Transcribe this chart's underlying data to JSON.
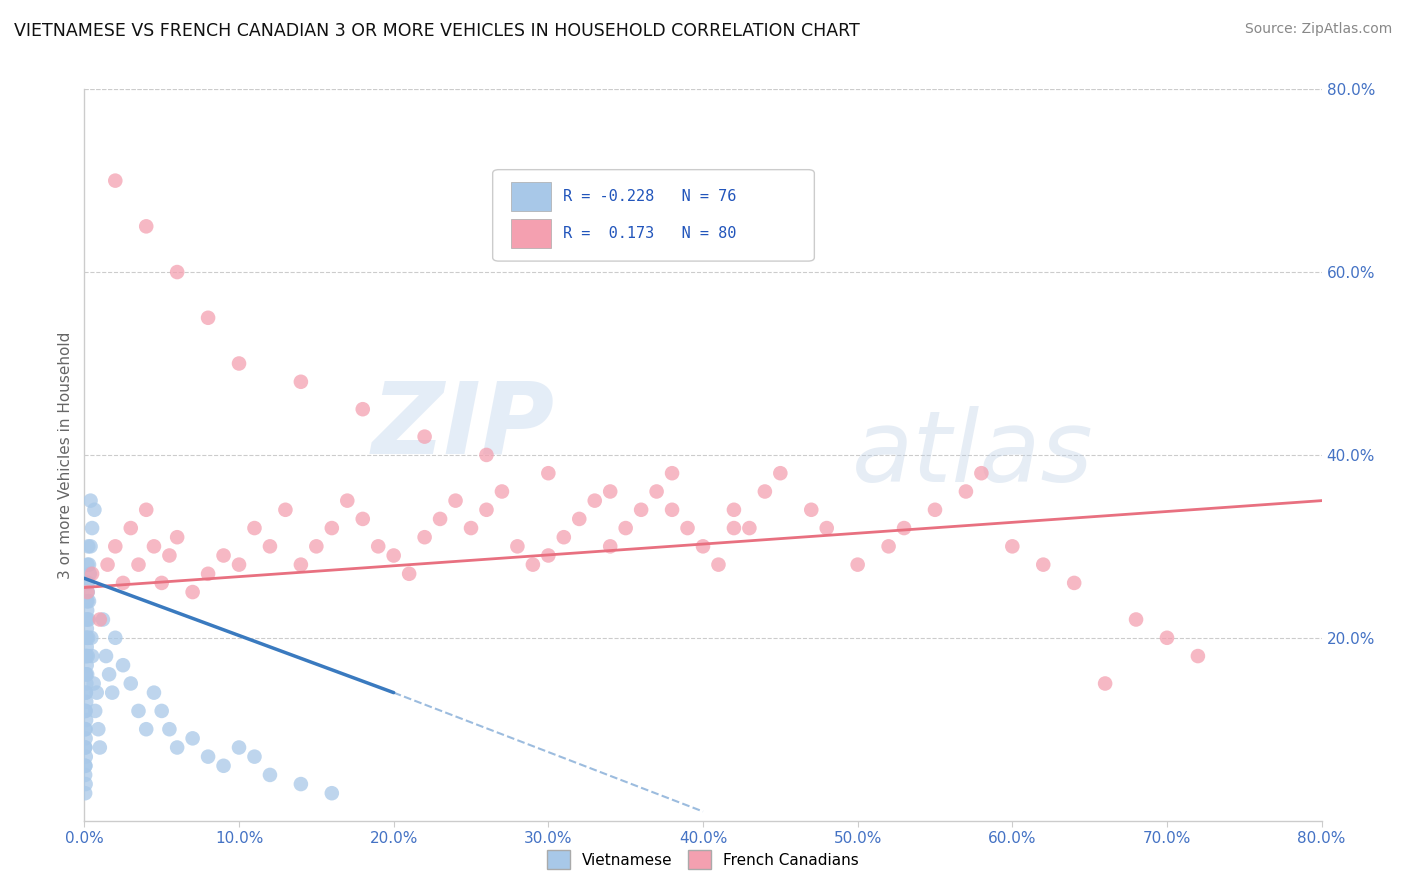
{
  "title": "VIETNAMESE VS FRENCH CANADIAN 3 OR MORE VEHICLES IN HOUSEHOLD CORRELATION CHART",
  "source": "Source: ZipAtlas.com",
  "ylabel": "3 or more Vehicles in Household",
  "xlim": [
    0.0,
    80.0
  ],
  "ylim": [
    0.0,
    80.0
  ],
  "right_yticks": [
    20.0,
    40.0,
    60.0,
    80.0
  ],
  "xticks": [
    0.0,
    10.0,
    20.0,
    30.0,
    40.0,
    50.0,
    60.0,
    70.0,
    80.0
  ],
  "color_blue": "#a8c8e8",
  "color_pink": "#f4a0b0",
  "color_blue_line": "#3a7abf",
  "color_pink_line": "#e87080",
  "background_color": "#ffffff",
  "watermark_zip": "ZIP",
  "watermark_atlas": "atlas",
  "viet_x": [
    0.05,
    0.05,
    0.06,
    0.06,
    0.07,
    0.08,
    0.08,
    0.09,
    0.1,
    0.1,
    0.1,
    0.11,
    0.12,
    0.12,
    0.13,
    0.14,
    0.15,
    0.15,
    0.15,
    0.16,
    0.17,
    0.18,
    0.18,
    0.2,
    0.22,
    0.22,
    0.25,
    0.25,
    0.28,
    0.3,
    0.35,
    0.4,
    0.45,
    0.5,
    0.6,
    0.7,
    0.8,
    0.9,
    1.0,
    1.2,
    1.4,
    1.6,
    1.8,
    2.0,
    2.5,
    3.0,
    3.5,
    4.0,
    4.5,
    5.0,
    5.5,
    6.0,
    7.0,
    8.0,
    9.0,
    10.0,
    11.0,
    12.0,
    14.0,
    16.0,
    0.05,
    0.05,
    0.06,
    0.07,
    0.08,
    0.09,
    0.1,
    0.12,
    0.15,
    0.18,
    0.2,
    0.25,
    0.3,
    0.4,
    0.5,
    0.65
  ],
  "viet_y": [
    5.0,
    8.0,
    10.0,
    12.0,
    6.0,
    4.0,
    9.0,
    7.0,
    14.0,
    16.0,
    18.0,
    11.0,
    13.0,
    20.0,
    15.0,
    22.0,
    17.0,
    19.0,
    24.0,
    21.0,
    26.0,
    16.0,
    23.0,
    28.0,
    18.0,
    25.0,
    20.0,
    30.0,
    22.0,
    24.0,
    27.0,
    35.0,
    20.0,
    18.0,
    15.0,
    12.0,
    14.0,
    10.0,
    8.0,
    22.0,
    18.0,
    16.0,
    14.0,
    20.0,
    17.0,
    15.0,
    12.0,
    10.0,
    14.0,
    12.0,
    10.0,
    8.0,
    9.0,
    7.0,
    6.0,
    8.0,
    7.0,
    5.0,
    4.0,
    3.0,
    3.0,
    6.0,
    8.0,
    10.0,
    12.0,
    14.0,
    16.0,
    18.0,
    20.0,
    22.0,
    24.0,
    26.0,
    28.0,
    30.0,
    32.0,
    34.0
  ],
  "fr_x": [
    0.2,
    0.5,
    1.0,
    1.5,
    2.0,
    2.5,
    3.0,
    3.5,
    4.0,
    4.5,
    5.0,
    5.5,
    6.0,
    7.0,
    8.0,
    9.0,
    10.0,
    11.0,
    12.0,
    13.0,
    14.0,
    15.0,
    16.0,
    17.0,
    18.0,
    19.0,
    20.0,
    21.0,
    22.0,
    23.0,
    24.0,
    25.0,
    26.0,
    27.0,
    28.0,
    29.0,
    30.0,
    31.0,
    32.0,
    33.0,
    34.0,
    35.0,
    36.0,
    37.0,
    38.0,
    39.0,
    40.0,
    41.0,
    42.0,
    43.0,
    44.0,
    45.0,
    47.0,
    48.0,
    50.0,
    52.0,
    53.0,
    55.0,
    57.0,
    58.0,
    60.0,
    62.0,
    64.0,
    66.0,
    68.0,
    70.0,
    72.0,
    2.0,
    4.0,
    6.0,
    8.0,
    10.0,
    14.0,
    18.0,
    22.0,
    26.0,
    30.0,
    34.0,
    38.0,
    42.0
  ],
  "fr_y": [
    25.0,
    27.0,
    22.0,
    28.0,
    30.0,
    26.0,
    32.0,
    28.0,
    34.0,
    30.0,
    26.0,
    29.0,
    31.0,
    25.0,
    27.0,
    29.0,
    28.0,
    32.0,
    30.0,
    34.0,
    28.0,
    30.0,
    32.0,
    35.0,
    33.0,
    30.0,
    29.0,
    27.0,
    31.0,
    33.0,
    35.0,
    32.0,
    34.0,
    36.0,
    30.0,
    28.0,
    29.0,
    31.0,
    33.0,
    35.0,
    30.0,
    32.0,
    34.0,
    36.0,
    38.0,
    32.0,
    30.0,
    28.0,
    34.0,
    32.0,
    36.0,
    38.0,
    34.0,
    32.0,
    28.0,
    30.0,
    32.0,
    34.0,
    36.0,
    38.0,
    30.0,
    28.0,
    26.0,
    15.0,
    22.0,
    20.0,
    18.0,
    70.0,
    65.0,
    60.0,
    55.0,
    50.0,
    48.0,
    45.0,
    42.0,
    40.0,
    38.0,
    36.0,
    34.0,
    32.0
  ],
  "viet_trend_x0": 0.0,
  "viet_trend_y0": 26.5,
  "viet_trend_x1": 20.0,
  "viet_trend_y1": 14.0,
  "viet_trend_x1_dashed": 40.0,
  "viet_trend_y1_dashed": 1.0,
  "fr_trend_x0": 0.0,
  "fr_trend_y0": 25.5,
  "fr_trend_x1": 80.0,
  "fr_trend_y1": 35.0
}
